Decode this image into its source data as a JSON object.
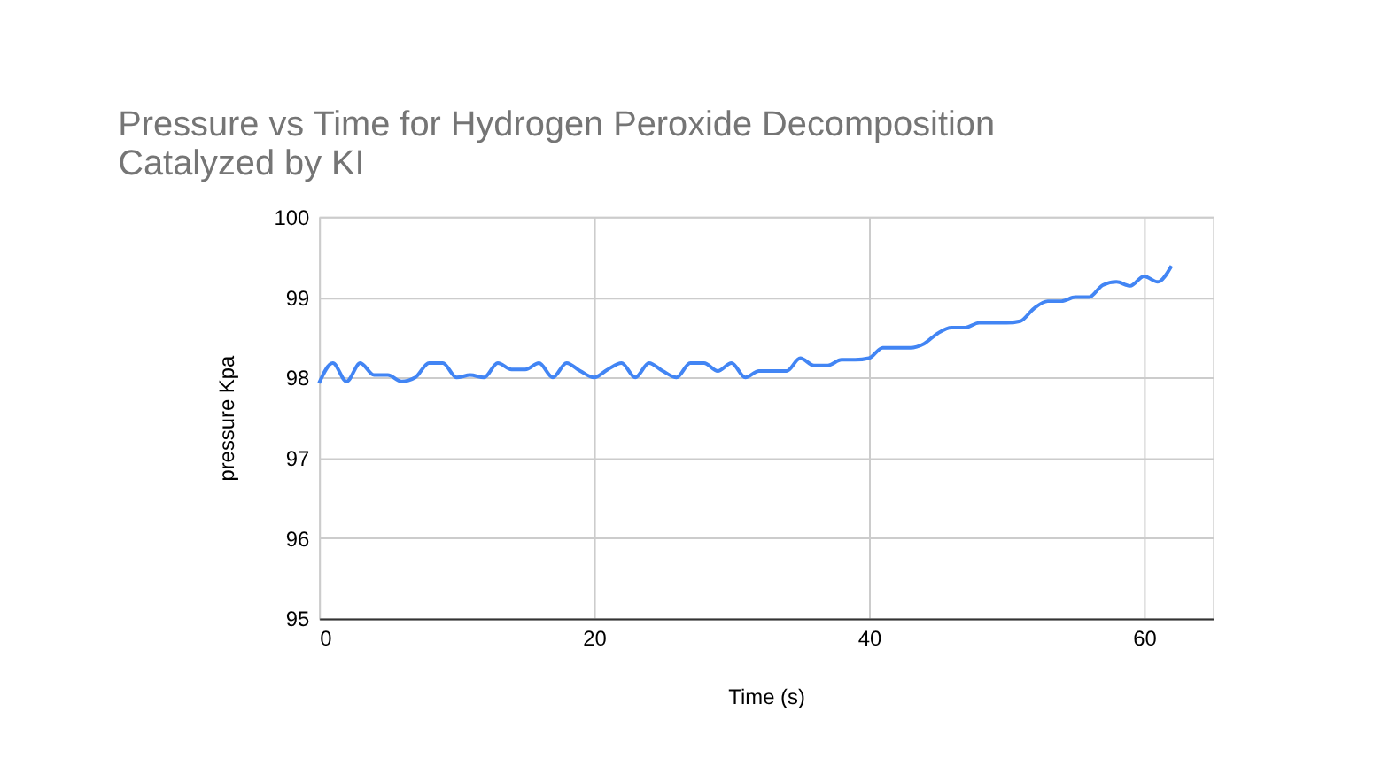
{
  "chart_data": {
    "type": "line",
    "title": [
      "Pressure vs Time for Hydrogen Peroxide Decomposition",
      "Catalyzed by KI"
    ],
    "xlabel": "Time (s)",
    "ylabel": "pressure Kpa",
    "x": [
      0,
      1,
      2,
      3,
      4,
      5,
      6,
      7,
      8,
      9,
      10,
      11,
      12,
      13,
      14,
      15,
      16,
      17,
      18,
      19,
      20,
      21,
      22,
      23,
      24,
      25,
      26,
      27,
      28,
      29,
      30,
      31,
      32,
      33,
      34,
      35,
      36,
      37,
      38,
      39,
      40,
      41,
      42,
      43,
      44,
      45,
      46,
      47,
      48,
      49,
      50,
      51,
      52,
      53,
      54,
      55,
      56,
      57,
      58,
      59,
      60,
      61,
      62
    ],
    "series": [
      {
        "color": "#4285f4",
        "values": [
          97.93,
          98.18,
          97.95,
          98.18,
          98.03,
          98.03,
          97.95,
          98.0,
          98.18,
          98.18,
          98.0,
          98.03,
          98.0,
          98.18,
          98.1,
          98.1,
          98.18,
          98.0,
          98.18,
          98.08,
          98.0,
          98.1,
          98.18,
          98.0,
          98.18,
          98.08,
          98.0,
          98.18,
          98.18,
          98.08,
          98.18,
          98.0,
          98.08,
          98.08,
          98.08,
          98.24,
          98.15,
          98.15,
          98.22,
          98.22,
          98.24,
          98.37,
          98.37,
          98.37,
          98.42,
          98.55,
          98.62,
          98.62,
          98.68,
          98.68,
          98.68,
          98.7,
          98.86,
          98.95,
          98.95,
          99.0,
          99.0,
          99.15,
          99.19,
          99.14,
          99.26,
          99.19,
          99.39
        ]
      }
    ],
    "xlim": [
      0,
      65
    ],
    "xticks": [
      0,
      20,
      40,
      60
    ],
    "ylim": [
      95,
      100
    ],
    "yticks": [
      95,
      96,
      97,
      98,
      99,
      100
    ],
    "grid": true,
    "marker": "none",
    "line_style": "solid"
  }
}
